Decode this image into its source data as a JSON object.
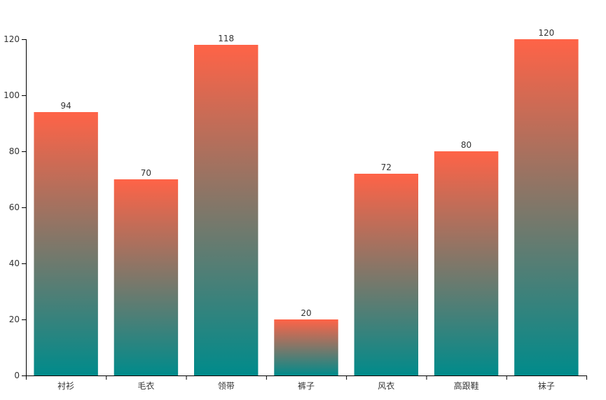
{
  "chart_data": {
    "type": "bar",
    "categories": [
      "衬衫",
      "毛衣",
      "领带",
      "裤子",
      "风衣",
      "高跟鞋",
      "袜子"
    ],
    "values": [
      94,
      70,
      118,
      20,
      72,
      80,
      120
    ],
    "gradient": [
      "#ff6347",
      "#008b8b"
    ],
    "ylim": [
      0,
      120
    ],
    "yticks": [
      0,
      20,
      40,
      60,
      80,
      100,
      120
    ]
  }
}
